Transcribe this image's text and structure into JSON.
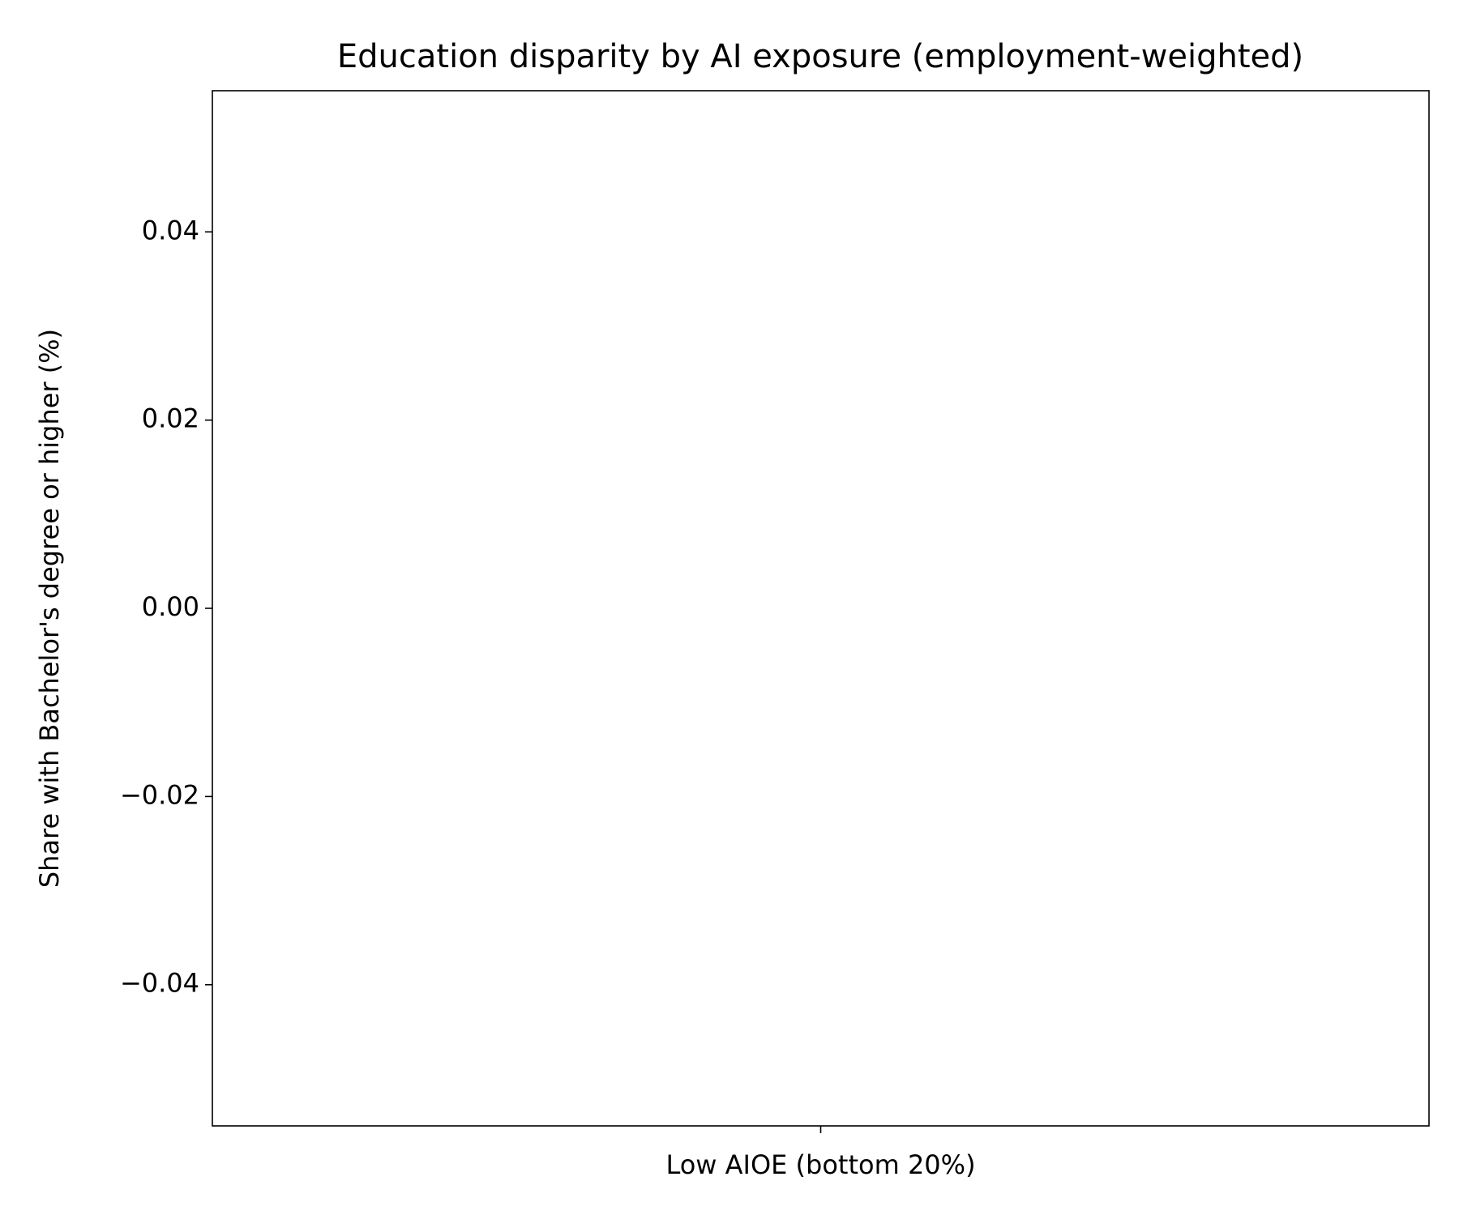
{
  "chart_data": {
    "type": "bar",
    "title": "Education disparity by AI exposure (employment-weighted)",
    "ylabel": "Share with Bachelor's degree or higher (%)",
    "categories": [
      "Low AIOE (bottom 20%)"
    ],
    "values": [
      0
    ],
    "color": "#1f77b4",
    "ylim": [
      -0.055,
      0.055
    ],
    "yticks": [
      {
        "value": -0.04,
        "label": "−0.04"
      },
      {
        "value": -0.02,
        "label": "−0.02"
      },
      {
        "value": 0,
        "label": "0.00"
      },
      0.02,
      0.04
    ],
    "grid": false
  }
}
